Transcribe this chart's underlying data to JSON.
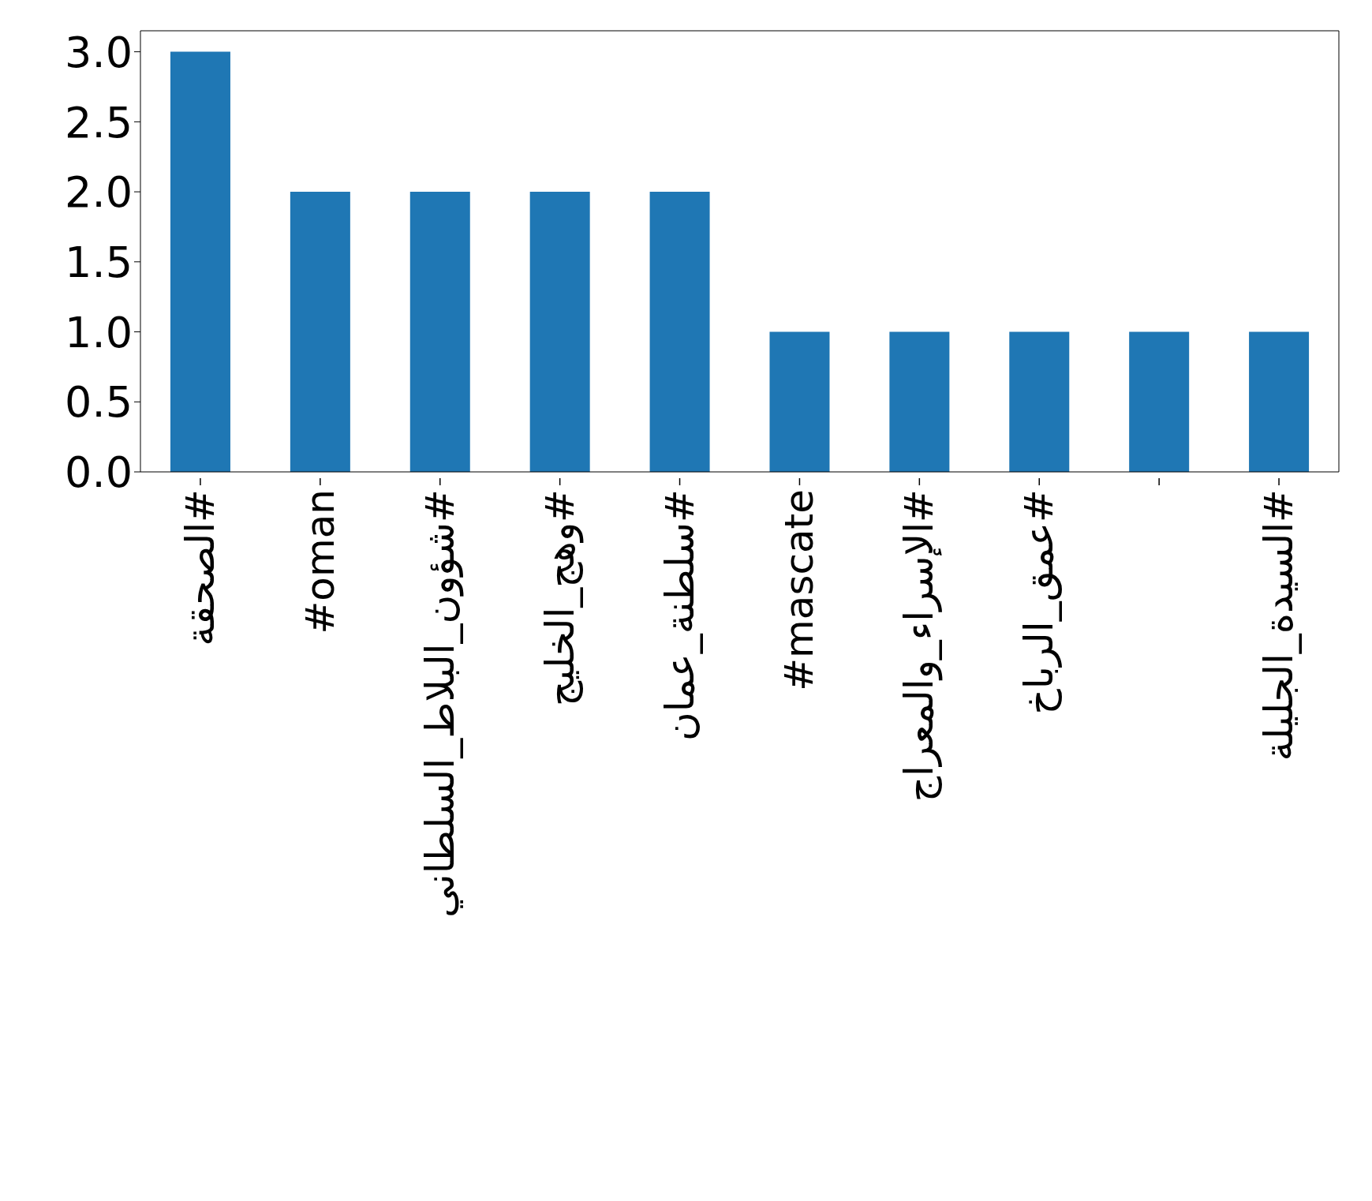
{
  "chart_data": {
    "type": "bar",
    "categories": [
      "#الصحقة",
      "#oman",
      "#شؤون_البلاط_السلطاني",
      "#وهج_الخليج",
      "#سلطنة_عمان",
      "#mascate",
      "#الإسراء_والمعراج",
      "#عمق_الرباخ",
      null,
      "#السيدة_الجليلة"
    ],
    "values": [
      3,
      2,
      2,
      2,
      2,
      1,
      1,
      1,
      1,
      1
    ],
    "color": "#1f77b4",
    "ylim": [
      0,
      3.15
    ],
    "yticks": [
      {
        "value": 0,
        "label": "0.0"
      },
      {
        "value": 0.5,
        "label": "0.5"
      },
      {
        "value": 1,
        "label": "1.0"
      },
      {
        "value": 1.5,
        "label": "1.5"
      },
      {
        "value": 2,
        "label": "2.0"
      },
      {
        "value": 2.5,
        "label": "2.5"
      },
      {
        "value": 3,
        "label": "3.0"
      }
    ],
    "grid": false
  }
}
